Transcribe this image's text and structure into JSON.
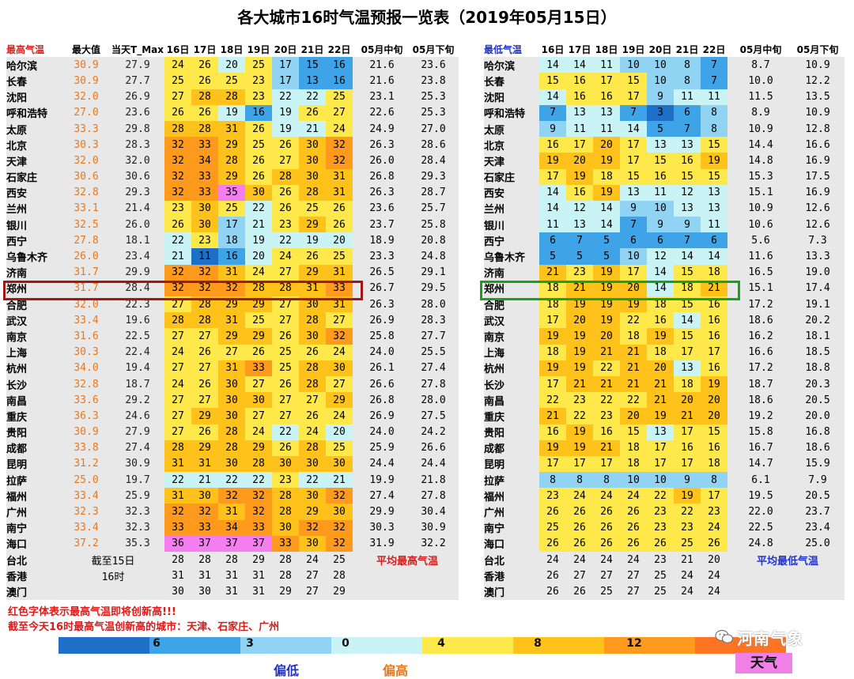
{
  "title": "各大城市16时气温预报一览表（2019年05月15日）",
  "left_headers": [
    "最高气温",
    "最大值",
    "当天T_Max",
    "16日",
    "17日",
    "18日",
    "19日",
    "20日",
    "21日",
    "22日",
    "05月中旬",
    "05月下旬"
  ],
  "right_headers": [
    "最低气温",
    "16日",
    "17日",
    "18日",
    "19日",
    "20日",
    "21日",
    "22日",
    "05月中旬",
    "05月下旬"
  ],
  "rows": [
    {
      "city": "哈尔滨",
      "max": "30.9",
      "cur": "27.9",
      "hi": [
        24,
        26,
        20,
        25,
        17,
        15,
        16
      ],
      "hm": "21.6",
      "hl": "23.6",
      "lo": [
        14,
        14,
        11,
        10,
        10,
        8,
        7
      ],
      "lm": "8.7",
      "ll": "10.9"
    },
    {
      "city": "长春",
      "max": "30.9",
      "cur": "27.7",
      "hi": [
        25,
        26,
        25,
        23,
        17,
        13,
        16
      ],
      "hm": "21.6",
      "hl": "23.8",
      "lo": [
        15,
        16,
        17,
        15,
        10,
        8,
        7
      ],
      "lm": "10.0",
      "ll": "12.2"
    },
    {
      "city": "沈阳",
      "max": "32.0",
      "cur": "26.9",
      "hi": [
        27,
        28,
        28,
        23,
        22,
        22,
        25
      ],
      "hm": "23.1",
      "hl": "25.3",
      "lo": [
        14,
        16,
        16,
        17,
        9,
        11,
        11
      ],
      "lm": "11.5",
      "ll": "13.5"
    },
    {
      "city": "呼和浩特",
      "max": "27.0",
      "cur": "23.6",
      "hi": [
        26,
        26,
        19,
        16,
        19,
        26,
        27
      ],
      "hm": "22.6",
      "hl": "25.3",
      "lo": [
        7,
        13,
        13,
        7,
        3,
        6,
        8
      ],
      "lm": "8.9",
      "ll": "10.9"
    },
    {
      "city": "太原",
      "max": "33.3",
      "cur": "29.8",
      "hi": [
        28,
        28,
        31,
        26,
        19,
        21,
        24
      ],
      "hm": "24.9",
      "hl": "27.0",
      "lo": [
        9,
        11,
        11,
        14,
        5,
        7,
        8
      ],
      "lm": "10.9",
      "ll": "12.8"
    },
    {
      "city": "北京",
      "max": "30.3",
      "cur": "28.3",
      "hi": [
        32,
        33,
        29,
        25,
        26,
        30,
        32
      ],
      "hm": "26.3",
      "hl": "28.6",
      "lo": [
        16,
        17,
        20,
        17,
        13,
        13,
        15
      ],
      "lm": "14.4",
      "ll": "16.6"
    },
    {
      "city": "天津",
      "max": "32.0",
      "cur": "32.0",
      "hi": [
        32,
        34,
        28,
        26,
        27,
        30,
        32
      ],
      "hm": "26.0",
      "hl": "28.4",
      "lo": [
        19,
        20,
        19,
        17,
        15,
        16,
        19
      ],
      "lm": "14.8",
      "ll": "16.9"
    },
    {
      "city": "石家庄",
      "max": "30.6",
      "cur": "30.6",
      "hi": [
        32,
        33,
        29,
        26,
        28,
        30,
        31
      ],
      "hm": "26.8",
      "hl": "29.3",
      "lo": [
        17,
        19,
        18,
        15,
        16,
        15,
        15
      ],
      "lm": "15.3",
      "ll": "17.5"
    },
    {
      "city": "西安",
      "max": "32.8",
      "cur": "29.3",
      "hi": [
        32,
        33,
        35,
        30,
        26,
        28,
        31
      ],
      "hm": "26.3",
      "hl": "28.7",
      "lo": [
        14,
        16,
        19,
        13,
        11,
        12,
        13
      ],
      "lm": "15.1",
      "ll": "16.9"
    },
    {
      "city": "兰州",
      "max": "33.1",
      "cur": "21.4",
      "hi": [
        23,
        30,
        25,
        22,
        26,
        25,
        26
      ],
      "hm": "23.6",
      "hl": "25.7",
      "lo": [
        14,
        12,
        14,
        9,
        10,
        13,
        13
      ],
      "lm": "10.9",
      "ll": "12.6"
    },
    {
      "city": "银川",
      "max": "32.5",
      "cur": "26.0",
      "hi": [
        26,
        30,
        17,
        21,
        23,
        29,
        26
      ],
      "hm": "23.7",
      "hl": "25.8",
      "lo": [
        11,
        13,
        14,
        7,
        9,
        9,
        11
      ],
      "lm": "10.6",
      "ll": "12.6"
    },
    {
      "city": "西宁",
      "max": "27.8",
      "cur": "18.1",
      "hi": [
        22,
        23,
        18,
        19,
        22,
        19,
        20
      ],
      "hm": "18.9",
      "hl": "20.8",
      "lo": [
        6,
        7,
        5,
        6,
        6,
        7,
        6
      ],
      "lm": "5.6",
      "ll": "7.3"
    },
    {
      "city": "乌鲁木齐",
      "max": "26.0",
      "cur": "23.4",
      "hi": [
        21,
        11,
        16,
        20,
        24,
        26,
        25
      ],
      "hm": "23.3",
      "hl": "24.8",
      "lo": [
        5,
        5,
        5,
        10,
        12,
        14,
        14
      ],
      "lm": "11.6",
      "ll": "13.3"
    },
    {
      "city": "济南",
      "max": "31.7",
      "cur": "29.9",
      "hi": [
        32,
        32,
        31,
        24,
        27,
        29,
        31
      ],
      "hm": "26.5",
      "hl": "29.1",
      "lo": [
        21,
        23,
        19,
        17,
        14,
        15,
        18
      ],
      "lm": "16.5",
      "ll": "19.0"
    },
    {
      "city": "郑州",
      "max": "31.7",
      "cur": "28.4",
      "hi": [
        32,
        32,
        32,
        28,
        28,
        31,
        33
      ],
      "hm": "26.7",
      "hl": "29.5",
      "lo": [
        18,
        21,
        19,
        20,
        14,
        18,
        21
      ],
      "lm": "15.1",
      "ll": "17.4"
    },
    {
      "city": "合肥",
      "max": "32.0",
      "cur": "22.3",
      "hi": [
        27,
        28,
        29,
        29,
        27,
        30,
        31
      ],
      "hm": "26.3",
      "hl": "28.0",
      "lo": [
        18,
        19,
        19,
        19,
        18,
        15,
        16
      ],
      "lm": "17.2",
      "ll": "19.1"
    },
    {
      "city": "武汉",
      "max": "33.4",
      "cur": "19.6",
      "hi": [
        28,
        28,
        31,
        25,
        27,
        28,
        27
      ],
      "hm": "26.9",
      "hl": "28.3",
      "lo": [
        17,
        20,
        19,
        22,
        16,
        14,
        16
      ],
      "lm": "18.6",
      "ll": "20.2"
    },
    {
      "city": "南京",
      "max": "31.6",
      "cur": "22.5",
      "hi": [
        27,
        27,
        29,
        29,
        26,
        30,
        32
      ],
      "hm": "25.8",
      "hl": "27.7",
      "lo": [
        19,
        19,
        20,
        18,
        19,
        15,
        16
      ],
      "lm": "16.2",
      "ll": "18.1"
    },
    {
      "city": "上海",
      "max": "30.3",
      "cur": "22.4",
      "hi": [
        24,
        26,
        27,
        26,
        25,
        26,
        24
      ],
      "hm": "24.0",
      "hl": "25.5",
      "lo": [
        18,
        19,
        21,
        21,
        18,
        17,
        17
      ],
      "lm": "16.6",
      "ll": "18.5"
    },
    {
      "city": "杭州",
      "max": "34.0",
      "cur": "19.4",
      "hi": [
        27,
        27,
        31,
        33,
        25,
        28,
        30
      ],
      "hm": "26.1",
      "hl": "27.4",
      "lo": [
        19,
        19,
        22,
        21,
        20,
        13,
        16
      ],
      "lm": "17.2",
      "ll": "18.8"
    },
    {
      "city": "长沙",
      "max": "32.8",
      "cur": "18.7",
      "hi": [
        24,
        26,
        30,
        27,
        26,
        28,
        27
      ],
      "hm": "26.6",
      "hl": "27.8",
      "lo": [
        17,
        21,
        21,
        21,
        21,
        18,
        19
      ],
      "lm": "18.7",
      "ll": "20.3"
    },
    {
      "city": "南昌",
      "max": "33.6",
      "cur": "29.2",
      "hi": [
        27,
        27,
        30,
        30,
        27,
        27,
        29
      ],
      "hm": "26.8",
      "hl": "28.0",
      "lo": [
        22,
        23,
        22,
        22,
        21,
        20,
        20
      ],
      "lm": "18.6",
      "ll": "20.5"
    },
    {
      "city": "重庆",
      "max": "36.3",
      "cur": "24.6",
      "hi": [
        27,
        29,
        30,
        27,
        27,
        26,
        24
      ],
      "hm": "26.9",
      "hl": "27.5",
      "lo": [
        21,
        22,
        23,
        20,
        19,
        21,
        20
      ],
      "lm": "19.2",
      "ll": "20.0"
    },
    {
      "city": "贵阳",
      "max": "30.9",
      "cur": "27.9",
      "hi": [
        27,
        26,
        28,
        24,
        22,
        24,
        20
      ],
      "hm": "24.0",
      "hl": "24.2",
      "lo": [
        16,
        19,
        16,
        15,
        13,
        17,
        15
      ],
      "lm": "15.8",
      "ll": "16.8"
    },
    {
      "city": "成都",
      "max": "33.8",
      "cur": "27.4",
      "hi": [
        28,
        29,
        28,
        29,
        26,
        28,
        25
      ],
      "hm": "25.9",
      "hl": "26.6",
      "lo": [
        19,
        19,
        21,
        18,
        17,
        16,
        16
      ],
      "lm": "16.7",
      "ll": "18.6"
    },
    {
      "city": "昆明",
      "max": "31.2",
      "cur": "30.9",
      "hi": [
        31,
        31,
        30,
        28,
        30,
        30,
        30
      ],
      "hm": "24.4",
      "hl": "24.4",
      "lo": [
        17,
        17,
        17,
        18,
        17,
        17,
        18
      ],
      "lm": "14.7",
      "ll": "15.9"
    },
    {
      "city": "拉萨",
      "max": "25.0",
      "cur": "19.7",
      "hi": [
        22,
        21,
        22,
        22,
        23,
        22,
        21
      ],
      "hm": "19.9",
      "hl": "21.8",
      "lo": [
        8,
        8,
        8,
        10,
        10,
        9,
        8
      ],
      "lm": "6.1",
      "ll": "7.9"
    },
    {
      "city": "福州",
      "max": "33.4",
      "cur": "25.9",
      "hi": [
        31,
        30,
        32,
        32,
        28,
        30,
        32
      ],
      "hm": "27.4",
      "hl": "27.8",
      "lo": [
        23,
        24,
        24,
        24,
        22,
        19,
        17
      ],
      "lm": "19.5",
      "ll": "20.5"
    },
    {
      "city": "广州",
      "max": "32.3",
      "cur": "32.3",
      "hi": [
        32,
        32,
        31,
        32,
        28,
        29,
        30
      ],
      "hm": "29.9",
      "hl": "30.4",
      "lo": [
        26,
        26,
        26,
        26,
        23,
        22,
        23
      ],
      "lm": "22.0",
      "ll": "23.7"
    },
    {
      "city": "南宁",
      "max": "33.4",
      "cur": "32.3",
      "hi": [
        33,
        33,
        34,
        33,
        30,
        32,
        32
      ],
      "hm": "30.3",
      "hl": "30.9",
      "lo": [
        25,
        26,
        26,
        26,
        23,
        23,
        24
      ],
      "lm": "22.5",
      "ll": "23.4"
    },
    {
      "city": "海口",
      "max": "37.2",
      "cur": "35.3",
      "hi": [
        36,
        37,
        37,
        37,
        33,
        30,
        32
      ],
      "hm": "31.9",
      "hl": "32.2",
      "lo": [
        26,
        26,
        26,
        26,
        26,
        25,
        26
      ],
      "lm": "24.8",
      "ll": "25.0"
    }
  ],
  "extra_rows": [
    {
      "city": "台北",
      "hi": [
        28,
        28,
        28,
        29,
        28,
        24,
        25
      ],
      "lo": [
        24,
        24,
        24,
        24,
        23,
        21,
        20
      ]
    },
    {
      "city": "香港",
      "hi": [
        31,
        31,
        31,
        31,
        28,
        27,
        28
      ],
      "lo": [
        26,
        27,
        27,
        27,
        25,
        24,
        24
      ]
    },
    {
      "city": "澳门",
      "hi": [
        30,
        30,
        31,
        31,
        29,
        27,
        29
      ],
      "lo": [
        26,
        26,
        25,
        27,
        25,
        24,
        24
      ]
    }
  ],
  "cutoff_1": "截至15日",
  "cutoff_2": "16时",
  "avg_max_label": "平均最高气温",
  "avg_min_label": "平均最低气温",
  "note_1": "红色字体表示最高气温即将创新高!!!",
  "note_2": "截至今天16时最高气温创新高的城市：天津、石家庄、广州",
  "legend": {
    "colors": [
      "#1d6fc8",
      "#3fa3e8",
      "#90d3f2",
      "#c9f3f5",
      "#ffe84a",
      "#ffc21a",
      "#ff9a1c",
      "#ff7422"
    ],
    "labels": [
      "6",
      "3",
      "0",
      "4",
      "8",
      "12"
    ],
    "low_caption": "偏低",
    "high_caption": "偏高",
    "badge": "天气",
    "watermark": "河南气象"
  },
  "colors": {
    "header_red": "#e02020",
    "header_blue": "#2233cc",
    "max_orange": "#e8781e",
    "box_zhengzhou_high": "#a01818",
    "box_zhengzhou_low": "#1aa11a"
  }
}
